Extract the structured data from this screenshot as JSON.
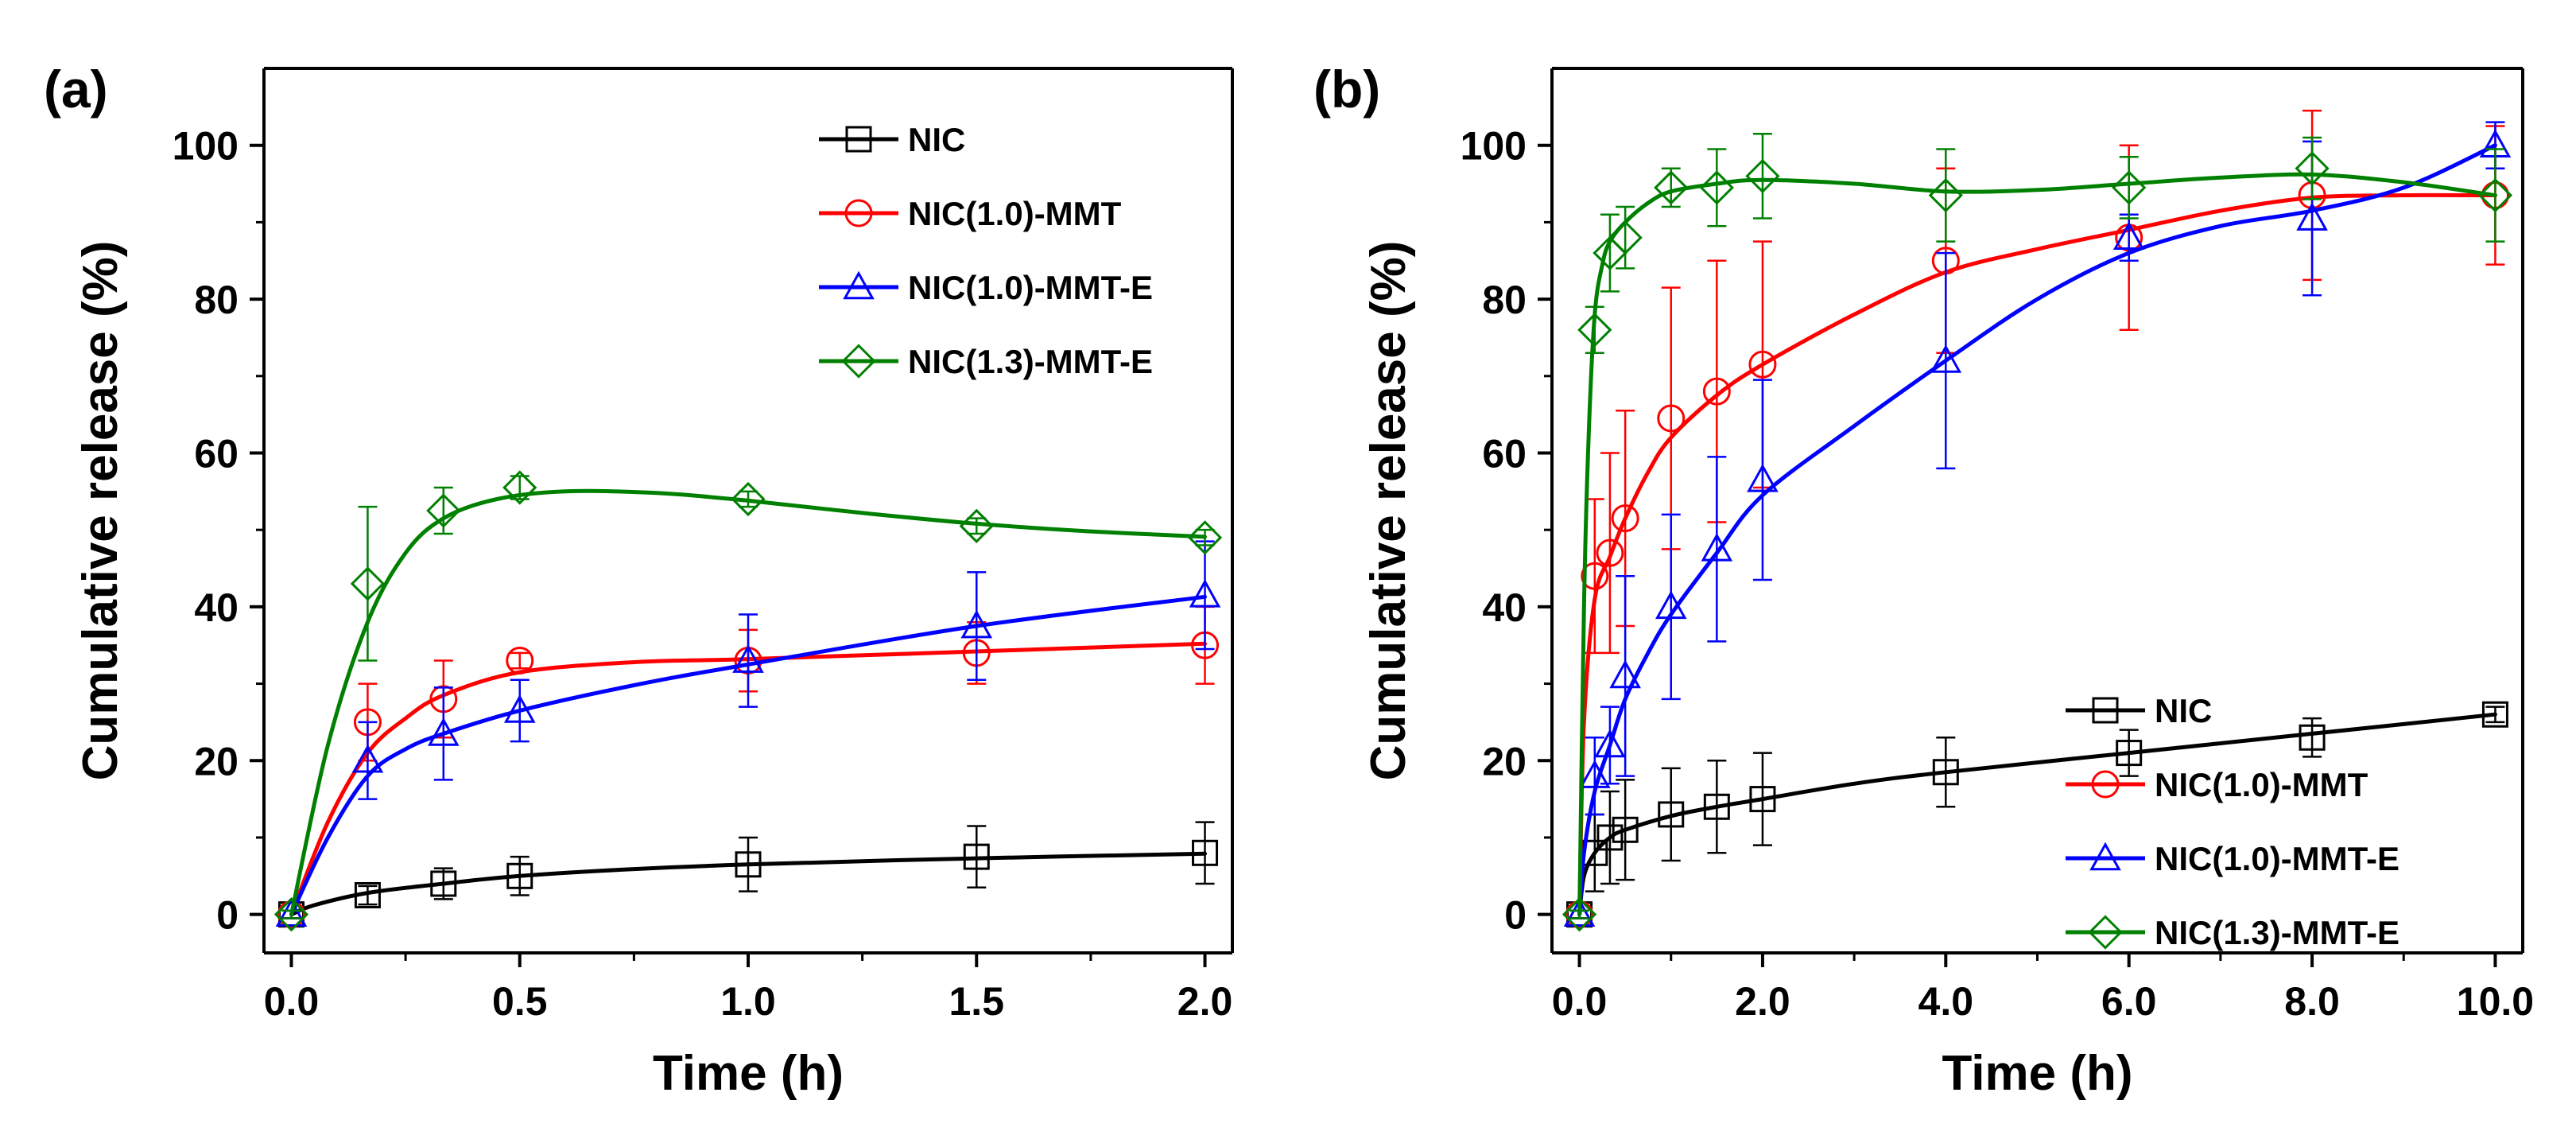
{
  "chart_data": [
    {
      "type": "line",
      "panel_label": "(a)",
      "xlabel": "Time (h)",
      "ylabel": "Cumulative release (%)",
      "xlim": [
        -0.06,
        2.06
      ],
      "ylim": [
        -5,
        110
      ],
      "xticks": [
        0.0,
        0.5,
        1.0,
        1.5,
        2.0
      ],
      "xtick_labels": [
        "0.0",
        "0.5",
        "1.0",
        "1.5",
        "2.0"
      ],
      "yticks": [
        0,
        20,
        40,
        60,
        80,
        100
      ],
      "ytick_labels": [
        "0",
        "20",
        "40",
        "60",
        "80",
        "100"
      ],
      "legend_position": "top-right",
      "series": [
        {
          "name": "NIC",
          "color": "#000000",
          "marker": "square",
          "x": [
            0,
            0.167,
            0.333,
            0.5,
            1.0,
            1.5,
            2.0
          ],
          "y": [
            0,
            2.5,
            4,
            5,
            6.5,
            7.5,
            8
          ],
          "err": [
            0.5,
            1.2,
            2,
            2.5,
            3.5,
            4,
            4
          ],
          "fit_x": [
            0,
            0.05,
            0.167,
            0.333,
            0.5,
            0.75,
            1.0,
            1.5,
            2.0
          ],
          "fit_y": [
            0,
            1.2,
            2.8,
            4,
            5,
            5.9,
            6.5,
            7.3,
            7.9
          ]
        },
        {
          "name": "NIC(1.0)-MMT",
          "color": "#ff0000",
          "marker": "circle",
          "x": [
            0,
            0.167,
            0.333,
            0.5,
            1.0,
            1.5,
            2.0
          ],
          "y": [
            0,
            25,
            28,
            33,
            33,
            34,
            35
          ],
          "err": [
            0.5,
            5,
            5,
            1,
            4,
            4,
            5
          ],
          "fit_x": [
            0,
            0.08,
            0.167,
            0.25,
            0.333,
            0.5,
            0.75,
            1.0,
            1.5,
            2.0
          ],
          "fit_y": [
            0,
            12,
            21,
            25.5,
            28.5,
            31.5,
            32.8,
            33.2,
            34.2,
            35.2
          ]
        },
        {
          "name": "NIC(1.0)-MMT-E",
          "color": "#0000ff",
          "marker": "triangle",
          "x": [
            0,
            0.167,
            0.333,
            0.5,
            1.0,
            1.5,
            2.0
          ],
          "y": [
            0,
            20,
            23.5,
            26.5,
            33,
            37.5,
            41.5
          ],
          "err": [
            0.5,
            5,
            6,
            4,
            6,
            7,
            7
          ],
          "fit_x": [
            0,
            0.08,
            0.167,
            0.25,
            0.333,
            0.5,
            0.75,
            1.0,
            1.5,
            2.0
          ],
          "fit_y": [
            0,
            10,
            18,
            21.5,
            23.5,
            26.5,
            29.8,
            32.5,
            37.5,
            41.3
          ]
        },
        {
          "name": "NIC(1.3)-MMT-E",
          "color": "#008000",
          "marker": "diamond",
          "x": [
            0,
            0.167,
            0.333,
            0.5,
            1.0,
            1.5,
            2.0
          ],
          "y": [
            0,
            43,
            52.5,
            55.5,
            54,
            50.5,
            49
          ],
          "err": [
            0.5,
            10,
            3,
            1.5,
            1,
            1,
            1
          ],
          "fit_x": [
            0,
            0.08,
            0.167,
            0.25,
            0.333,
            0.45,
            0.6,
            0.8,
            1.0,
            1.25,
            1.5,
            1.75,
            2.0
          ],
          "fit_y": [
            0,
            22,
            38,
            47,
            51.5,
            54,
            55,
            54.8,
            53.8,
            52.2,
            50.8,
            49.8,
            49.1
          ]
        }
      ]
    },
    {
      "type": "line",
      "panel_label": "(b)",
      "xlabel": "Time (h)",
      "ylabel": "Cumulative release (%)",
      "xlim": [
        -0.3,
        10.3
      ],
      "ylim": [
        -5,
        110
      ],
      "xticks": [
        0,
        2,
        4,
        6,
        8,
        10
      ],
      "xtick_labels": [
        "0.0",
        "2.0",
        "4.0",
        "6.0",
        "8.0",
        "10.0"
      ],
      "yticks": [
        0,
        20,
        40,
        60,
        80,
        100
      ],
      "ytick_labels": [
        "0",
        "20",
        "40",
        "60",
        "80",
        "100"
      ],
      "legend_position": "center-right",
      "series": [
        {
          "name": "NIC",
          "color": "#000000",
          "marker": "square",
          "x": [
            0,
            0.167,
            0.333,
            0.5,
            1,
            1.5,
            2,
            4,
            6,
            8,
            10
          ],
          "y": [
            0,
            8,
            10,
            11,
            13,
            14,
            15,
            18.5,
            21,
            23,
            26
          ],
          "err": [
            0.5,
            5,
            6,
            6.5,
            6,
            6,
            6,
            4.5,
            3,
            2.5,
            1
          ],
          "fit_x": [
            0,
            0.05,
            0.167,
            0.333,
            0.5,
            1,
            1.5,
            2,
            3,
            4,
            6,
            8,
            10
          ],
          "fit_y": [
            0,
            5,
            8,
            10,
            11,
            12.8,
            14,
            15,
            17,
            18.5,
            21,
            23.5,
            26
          ]
        },
        {
          "name": "NIC(1.0)-MMT",
          "color": "#ff0000",
          "marker": "circle",
          "x": [
            0,
            0.167,
            0.333,
            0.5,
            1,
            1.5,
            2,
            4,
            6,
            8,
            10
          ],
          "y": [
            0,
            44,
            47,
            51.5,
            64.5,
            68,
            71.5,
            85,
            88,
            93.5,
            93.5
          ],
          "err": [
            0.5,
            10,
            13,
            14,
            17,
            17,
            16,
            12,
            12,
            11,
            9
          ],
          "fit_x": [
            0,
            0.05,
            0.167,
            0.333,
            0.5,
            0.75,
            1,
            1.5,
            2,
            3,
            4,
            5,
            6,
            7,
            8,
            9,
            10
          ],
          "fit_y": [
            0,
            25,
            41,
            46.5,
            51.5,
            57.5,
            62,
            67.5,
            71.5,
            78,
            83.5,
            86.5,
            89,
            91.5,
            93.2,
            93.5,
            93.5
          ]
        },
        {
          "name": "NIC(1.0)-MMT-E",
          "color": "#0000ff",
          "marker": "triangle",
          "x": [
            0,
            0.167,
            0.333,
            0.5,
            1,
            1.5,
            2,
            4,
            6,
            8,
            10
          ],
          "y": [
            0,
            18,
            22,
            31,
            40,
            47.5,
            56.5,
            72,
            88,
            90.5,
            100
          ],
          "err": [
            0.5,
            5,
            5,
            13,
            12,
            12,
            13,
            14,
            3,
            10,
            3
          ],
          "fit_x": [
            0,
            0.05,
            0.167,
            0.333,
            0.5,
            0.75,
            1,
            1.5,
            2,
            3,
            4,
            5,
            6,
            7,
            8,
            9,
            10
          ],
          "fit_y": [
            0,
            8,
            16,
            22,
            28,
            34,
            39,
            47,
            54.5,
            63.5,
            72,
            80,
            86,
            89.5,
            91.5,
            94.5,
            100
          ]
        },
        {
          "name": "NIC(1.3)-MMT-E",
          "color": "#008000",
          "marker": "diamond",
          "x": [
            0,
            0.167,
            0.333,
            0.5,
            1,
            1.5,
            2,
            4,
            6,
            8,
            10
          ],
          "y": [
            0,
            76,
            86,
            88,
            94.5,
            94.5,
            96,
            93.5,
            94.5,
            97,
            93.5
          ],
          "err": [
            0.5,
            3,
            5,
            4,
            2.5,
            5,
            5.5,
            6,
            4,
            4,
            6
          ],
          "fit_x": [
            0,
            0.05,
            0.1,
            0.167,
            0.25,
            0.333,
            0.5,
            0.75,
            1,
            1.5,
            2,
            3,
            4,
            5,
            6,
            7,
            8,
            9,
            10
          ],
          "fit_y": [
            0,
            40,
            62,
            78,
            84.5,
            87.5,
            90,
            92.5,
            94,
            95,
            95.5,
            95,
            94,
            94.2,
            95,
            95.8,
            96.2,
            95.2,
            93.5
          ]
        }
      ]
    }
  ]
}
